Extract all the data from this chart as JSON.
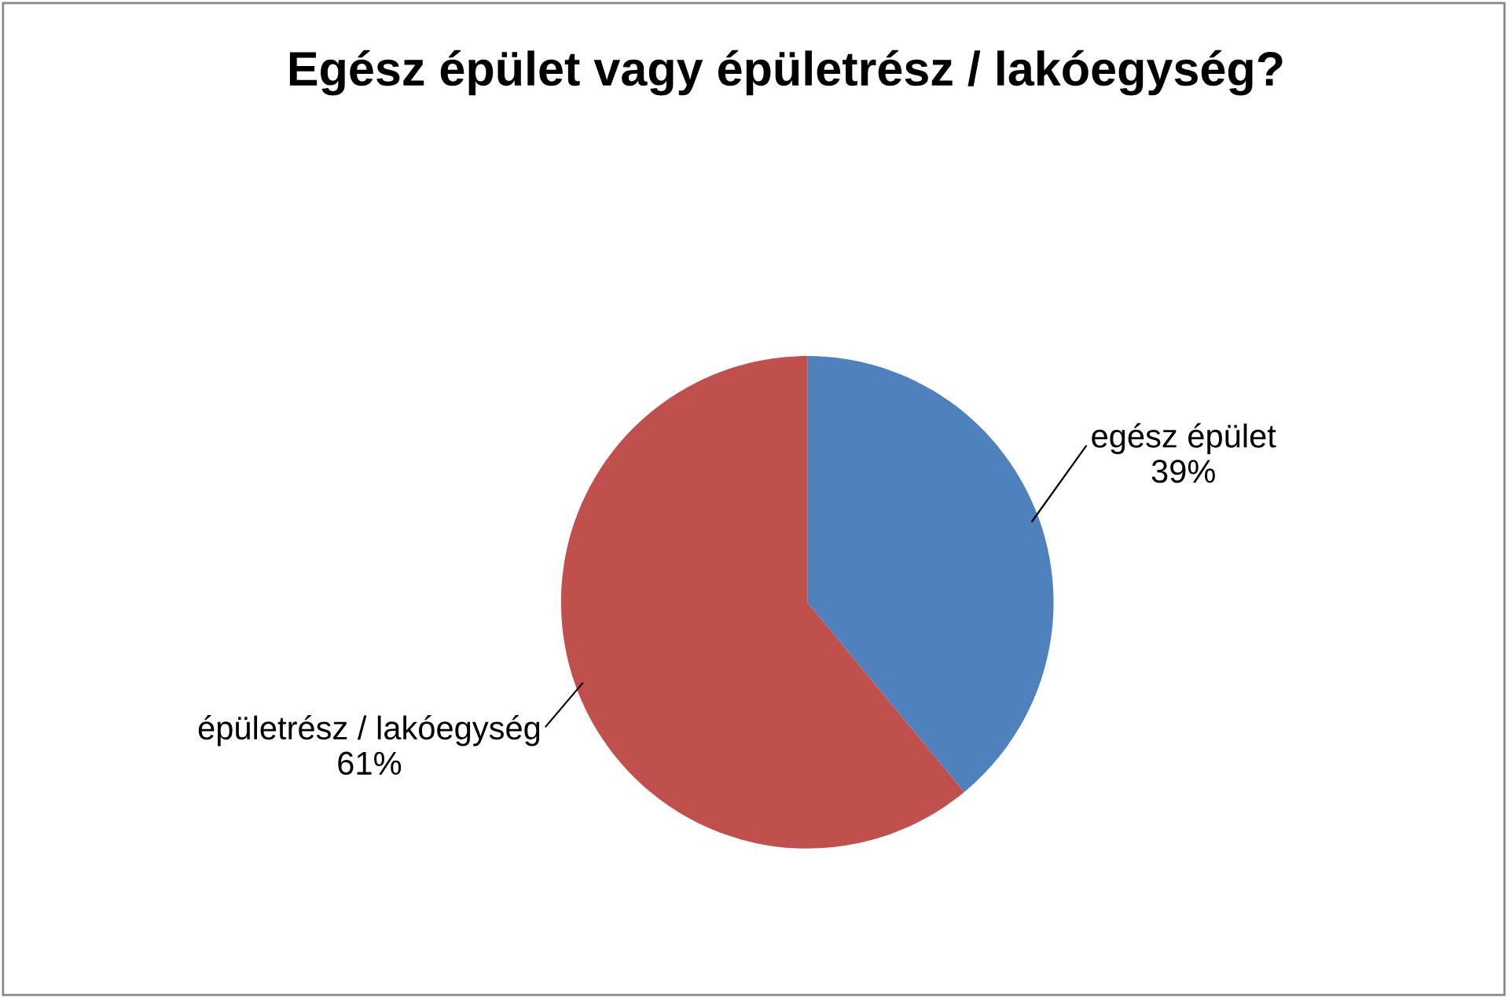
{
  "chart_data": {
    "type": "pie",
    "title": "Egész épület vagy épületrész / lakóegység?",
    "categories": [
      "egész épület",
      "épületrész / lakóegység"
    ],
    "values": [
      39,
      61
    ],
    "colors": [
      "#4f81bd",
      "#c0504d"
    ],
    "value_labels": [
      "39%",
      "61%"
    ]
  }
}
